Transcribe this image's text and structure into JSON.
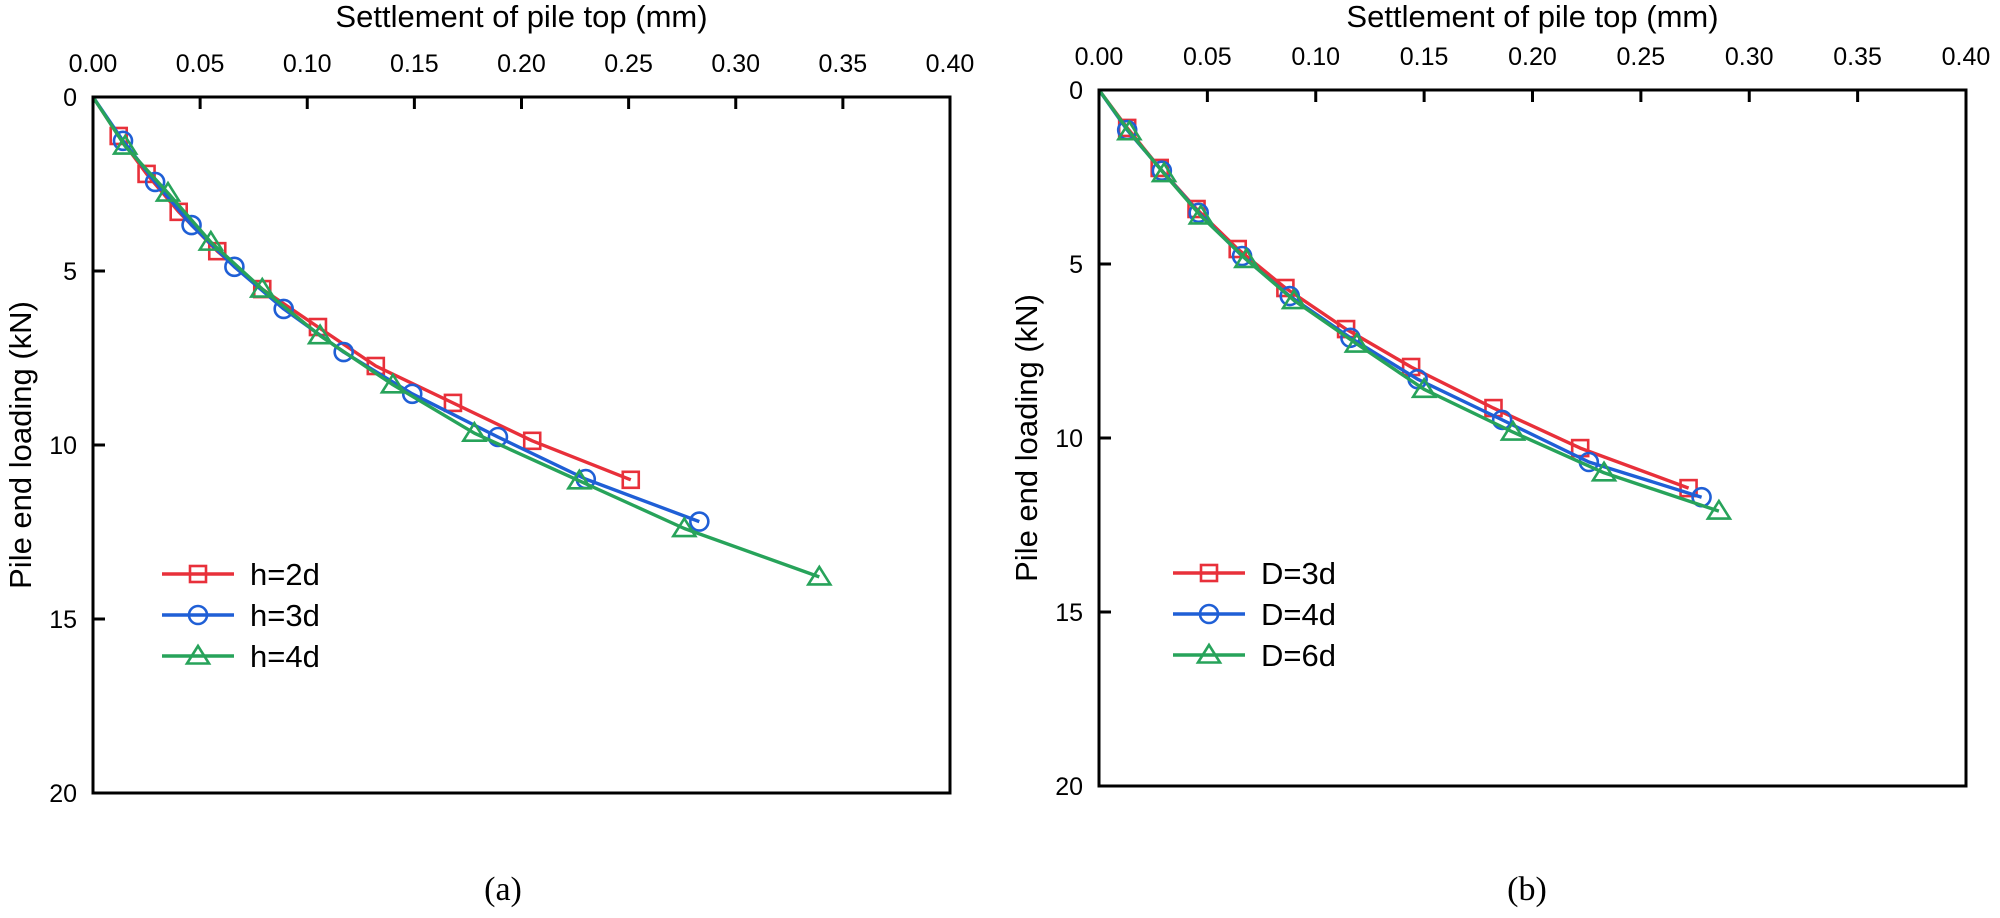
{
  "chart_data": [
    {
      "type": "line",
      "panel_label": "(a)",
      "title": "",
      "xlabel": "Settlement of pile top (mm)",
      "ylabel": "Pile end loading (kN)",
      "xlim": [
        0,
        0.4
      ],
      "ylim": [
        0,
        20
      ],
      "y_inverted": true,
      "x_axis_position": "top",
      "x_ticks": [
        "0.00",
        "0.05",
        "0.10",
        "0.15",
        "0.20",
        "0.25",
        "0.30",
        "0.35",
        "0.40"
      ],
      "y_ticks": [
        "0",
        "5",
        "10",
        "15",
        "20"
      ],
      "grid": false,
      "legend_position": "bottom-left",
      "series": [
        {
          "name": "h=2d",
          "color": "#e8303a",
          "marker": "square",
          "x": [
            0,
            0.012,
            0.025,
            0.04,
            0.058,
            0.079,
            0.105,
            0.132,
            0.168,
            0.205,
            0.251
          ],
          "y": [
            0,
            1.12,
            2.21,
            3.3,
            4.43,
            5.52,
            6.61,
            7.73,
            8.79,
            9.88,
            11.0
          ]
        },
        {
          "name": "h=3d",
          "color": "#1f5fd6",
          "marker": "circle",
          "x": [
            0,
            0.014,
            0.029,
            0.046,
            0.066,
            0.089,
            0.117,
            0.149,
            0.189,
            0.23,
            0.283
          ],
          "y": [
            0,
            1.26,
            2.44,
            3.68,
            4.88,
            6.09,
            7.33,
            8.53,
            9.77,
            10.98,
            12.2
          ]
        },
        {
          "name": "h=4d",
          "color": "#27a35a",
          "marker": "triangle",
          "x": [
            0,
            0.015,
            0.035,
            0.055,
            0.079,
            0.106,
            0.14,
            0.178,
            0.227,
            0.276,
            0.339
          ],
          "y": [
            0,
            1.41,
            2.76,
            4.17,
            5.52,
            6.86,
            8.27,
            9.66,
            11.03,
            12.4,
            13.79
          ]
        }
      ]
    },
    {
      "type": "line",
      "panel_label": "(b)",
      "title": "",
      "xlabel": "Settlement of pile top (mm)",
      "ylabel": "Pile end loading (kN)",
      "xlim": [
        0,
        0.4
      ],
      "ylim": [
        0,
        20
      ],
      "y_inverted": true,
      "x_axis_position": "top",
      "x_ticks": [
        "0.00",
        "0.05",
        "0.10",
        "0.15",
        "0.20",
        "0.25",
        "0.30",
        "0.35",
        "0.40"
      ],
      "y_ticks": [
        "0",
        "5",
        "10",
        "15",
        "20"
      ],
      "grid": false,
      "legend_position": "bottom-left",
      "series": [
        {
          "name": "D=3d",
          "color": "#e8303a",
          "marker": "square",
          "x": [
            0,
            0.013,
            0.028,
            0.045,
            0.064,
            0.086,
            0.114,
            0.144,
            0.182,
            0.222,
            0.272
          ],
          "y": [
            0,
            1.09,
            2.24,
            3.42,
            4.57,
            5.69,
            6.87,
            7.96,
            9.14,
            10.29,
            11.44
          ]
        },
        {
          "name": "D=4d",
          "color": "#1f5fd6",
          "marker": "circle",
          "x": [
            0,
            0.013,
            0.029,
            0.046,
            0.066,
            0.088,
            0.116,
            0.147,
            0.186,
            0.226,
            0.278
          ],
          "y": [
            0,
            1.15,
            2.32,
            3.53,
            4.77,
            5.92,
            7.12,
            8.31,
            9.48,
            10.69,
            11.7
          ]
        },
        {
          "name": "D=6d",
          "color": "#27a35a",
          "marker": "triangle",
          "x": [
            0,
            0.014,
            0.03,
            0.047,
            0.068,
            0.09,
            0.119,
            0.15,
            0.191,
            0.233,
            0.286
          ],
          "y": [
            0,
            1.2,
            2.4,
            3.62,
            4.87,
            6.05,
            7.3,
            8.6,
            9.83,
            11.0,
            12.1
          ]
        }
      ]
    }
  ]
}
